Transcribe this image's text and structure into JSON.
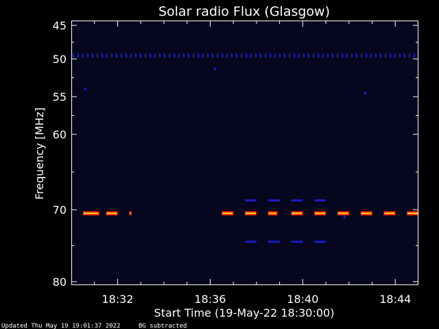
{
  "chart_data": {
    "type": "heatmap",
    "title": "Solar radio Flux (Glasgow)",
    "xlabel": "Start Time (19-May-22 18:30:00)",
    "ylabel": "Frequency [MHz]",
    "x_unit": "minutes after 18:30:00",
    "xlim": [
      0,
      15
    ],
    "x_ticks": [
      2,
      6,
      10,
      14
    ],
    "x_tick_labels": [
      "18:32",
      "18:36",
      "18:40",
      "18:44"
    ],
    "y_ticks": [
      45,
      50,
      55,
      60,
      70,
      80
    ],
    "y_tick_labels": [
      "45",
      "50",
      "55",
      "60",
      "70",
      "80"
    ],
    "grid": false,
    "colors": {
      "background": "#000000",
      "plot_bg": "#06061e",
      "weak": "#1c1cc8",
      "strong_edge": "#ff2200",
      "strong_core": "#ffdd33"
    },
    "emissions": [
      {
        "freq": 49.5,
        "level": "weak",
        "segments": [
          [
            0,
            15
          ]
        ],
        "dotted": true
      },
      {
        "freq": 70.5,
        "level": "strong",
        "segments": [
          [
            0.5,
            1.2
          ],
          [
            1.5,
            2.0
          ],
          [
            2.5,
            2.6
          ],
          [
            6.5,
            7.0
          ],
          [
            7.5,
            8.0
          ],
          [
            8.5,
            8.9
          ],
          [
            9.5,
            10.0
          ],
          [
            10.5,
            11.0
          ],
          [
            11.5,
            12.0
          ],
          [
            12.5,
            13.0
          ],
          [
            13.5,
            14.0
          ],
          [
            14.5,
            15.0
          ]
        ]
      },
      {
        "freq": 68.8,
        "level": "weak",
        "segments": [
          [
            7.5,
            8.0
          ],
          [
            8.5,
            9.0
          ],
          [
            9.5,
            10.0
          ],
          [
            10.5,
            11.0
          ]
        ]
      },
      {
        "freq": 74.5,
        "level": "weak",
        "segments": [
          [
            7.5,
            8.0
          ],
          [
            8.5,
            9.0
          ],
          [
            9.5,
            10.0
          ],
          [
            10.5,
            11.0
          ]
        ]
      }
    ],
    "spots": [
      {
        "t": 0.6,
        "freq": 54.0
      },
      {
        "t": 6.2,
        "freq": 51.3
      },
      {
        "t": 12.7,
        "freq": 54.5
      },
      {
        "t": 11.8,
        "freq": 71.0
      }
    ]
  },
  "footer": {
    "updated": "Updated Thu May 19 19:01:37 2022",
    "bg_note": "BG subtracted"
  }
}
